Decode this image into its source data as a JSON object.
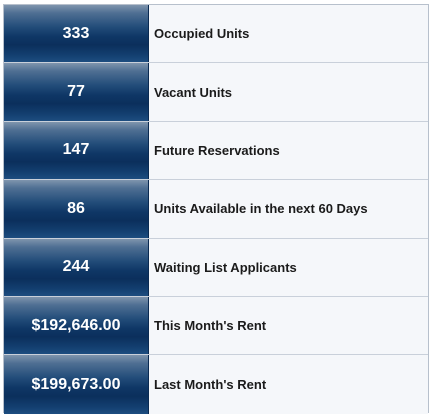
{
  "stats": [
    {
      "value": "333",
      "label": "Occupied Units"
    },
    {
      "value": "77",
      "label": "Vacant Units"
    },
    {
      "value": "147",
      "label": "Future Reservations"
    },
    {
      "value": "86",
      "label": "Units Available in the next 60 Days"
    },
    {
      "value": "244",
      "label": "Waiting List Applicants"
    },
    {
      "value": "$192,646.00",
      "label": "This Month's Rent"
    },
    {
      "value": "$199,673.00",
      "label": "Last Month's Rent"
    }
  ]
}
